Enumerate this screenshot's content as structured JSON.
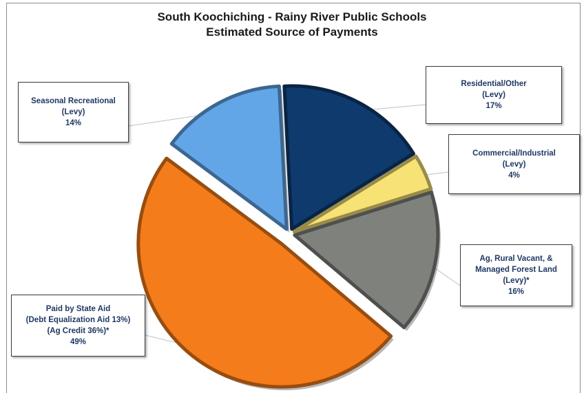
{
  "chart_data": {
    "type": "pie",
    "title": "South Koochiching - Rainy River Public Schools",
    "subtitle": "Estimated Source of Payments",
    "slices": [
      {
        "key": "residential",
        "label": "Residential/Other",
        "sublabel": "(Levy)",
        "value": 17,
        "percent": "17%",
        "color": "#0f3a6e"
      },
      {
        "key": "commercial",
        "label": "Commercial/Industrial",
        "sublabel": "(Levy)",
        "value": 4,
        "percent": "4%",
        "color": "#f7e276"
      },
      {
        "key": "ag",
        "label": "Ag, Rural Vacant, &",
        "label2": "Managed Forest Land",
        "sublabel": "(Levy)*",
        "value": 16,
        "percent": "16%",
        "color": "#7f817d"
      },
      {
        "key": "state",
        "label": "Paid by State Aid",
        "label2": "(Debt Equalization Aid 13%)",
        "sublabel": "(Ag Credit 36%)*",
        "value": 49,
        "percent": "49%",
        "color": "#f57c1a"
      },
      {
        "key": "seasonal",
        "label": "Seasonal Recreational",
        "sublabel": "(Levy)",
        "value": 14,
        "percent": "14%",
        "color": "#62a6e8"
      }
    ]
  }
}
